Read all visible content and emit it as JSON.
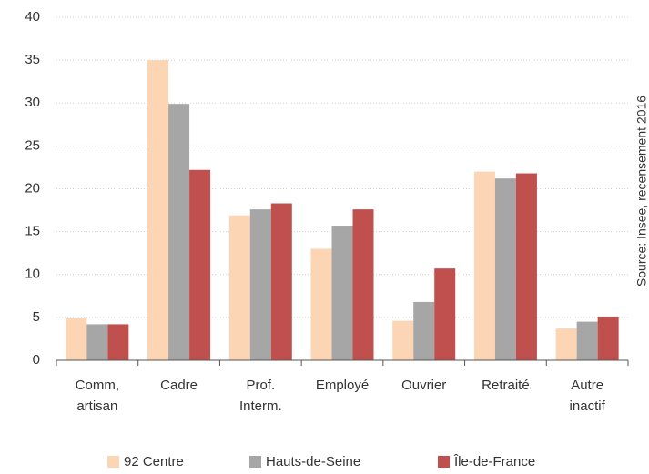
{
  "chart_data": {
    "type": "bar",
    "categories": [
      "Comm, artisan",
      "Cadre",
      "Prof. Interm.",
      "Employé",
      "Ouvrier",
      "Retraité",
      "Autre inactif"
    ],
    "series": [
      {
        "name": "92 Centre",
        "color": "#fcd5b5",
        "values": [
          4.9,
          35,
          16.9,
          13,
          4.6,
          22,
          3.7
        ]
      },
      {
        "name": "Hauts-de-Seine",
        "color": "#a6a6a6",
        "values": [
          4.2,
          29.9,
          17.6,
          15.7,
          6.8,
          21.2,
          4.5
        ]
      },
      {
        "name": "Île-de-France",
        "color": "#c0504d",
        "values": [
          4.2,
          22.2,
          18.3,
          17.6,
          10.7,
          21.8,
          5.1
        ]
      }
    ],
    "ylim": [
      0,
      40
    ],
    "yticks": [
      0,
      5,
      10,
      15,
      20,
      25,
      30,
      35,
      40
    ],
    "grid": true,
    "annotation": "Source: Insee, recensement 2016",
    "legend": "bottom"
  }
}
